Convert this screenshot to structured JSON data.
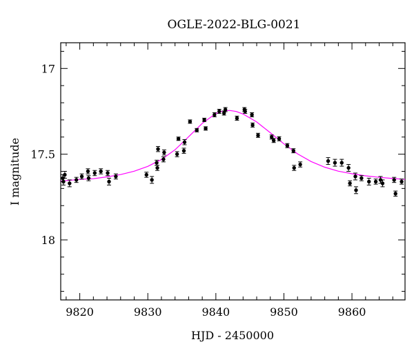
{
  "chart_data": {
    "type": "scatter",
    "title": "OGLE-2022-BLG-0021",
    "xlabel": "HJD - 2450000",
    "ylabel": "I magnitude",
    "xlim": [
      9817.2,
      9867.8
    ],
    "ylim": [
      18.35,
      16.85
    ],
    "y_inverted": true,
    "grid": false,
    "xticks": [
      9820,
      9830,
      9840,
      9850,
      9860
    ],
    "xtick_labels": [
      "9820",
      "9830",
      "9840",
      "9850",
      "9860"
    ],
    "yticks": [
      17,
      17.5,
      18
    ],
    "ytick_labels": [
      "17",
      "17.5",
      "18"
    ],
    "colors": {
      "points": "#000000",
      "model": "#ff00ff",
      "secondary_points": "#4a6b3a"
    },
    "series": [
      {
        "kind": "points",
        "x": [
          9817.5,
          9817.6,
          9817.8,
          9818.5,
          9819.5,
          9820.3,
          9821.2,
          9821.3,
          9822.2,
          9823.1,
          9824.1,
          9824.3,
          9825.3,
          9829.8,
          9830.6,
          9831.3,
          9831.4,
          9831.5,
          9832.3,
          9832.4,
          9834.3,
          9834.5,
          9835.3,
          9835.4,
          9836.2,
          9837.2,
          9838.3,
          9838.5,
          9839.8,
          9840.5,
          9841.2,
          9841.4,
          9843.1,
          9844.2,
          9844.3,
          9845.3,
          9845.4,
          9846.2,
          9848.2,
          9848.5,
          9849.3,
          9850.5,
          9851.4,
          9851.5,
          9852.4,
          9856.5,
          9857.5,
          9858.5,
          9859.5,
          9859.7,
          9860.5,
          9860.6,
          9861.4,
          9862.5,
          9863.5,
          9864.2,
          9864.5,
          9866.2,
          9866.4,
          9867.3
        ],
        "y": [
          17.64,
          17.66,
          17.62,
          17.67,
          17.65,
          17.63,
          17.6,
          17.64,
          17.61,
          17.6,
          17.61,
          17.66,
          17.63,
          17.62,
          17.65,
          17.55,
          17.58,
          17.47,
          17.53,
          17.49,
          17.5,
          17.41,
          17.48,
          17.43,
          17.31,
          17.36,
          17.3,
          17.35,
          17.27,
          17.25,
          17.26,
          17.24,
          17.29,
          17.24,
          17.25,
          17.27,
          17.33,
          17.39,
          17.4,
          17.42,
          17.41,
          17.45,
          17.48,
          17.58,
          17.56,
          17.54,
          17.55,
          17.55,
          17.58,
          17.67,
          17.63,
          17.71,
          17.64,
          17.66,
          17.66,
          17.65,
          17.67,
          17.65,
          17.73,
          17.66
        ],
        "err": [
          0.02,
          0.02,
          0.02,
          0.02,
          0.015,
          0.015,
          0.015,
          0.015,
          0.015,
          0.015,
          0.015,
          0.02,
          0.015,
          0.015,
          0.02,
          0.015,
          0.015,
          0.015,
          0.015,
          0.015,
          0.015,
          0.01,
          0.015,
          0.015,
          0.01,
          0.01,
          0.01,
          0.01,
          0.012,
          0.012,
          0.012,
          0.012,
          0.012,
          0.012,
          0.012,
          0.012,
          0.012,
          0.012,
          0.012,
          0.012,
          0.012,
          0.012,
          0.012,
          0.015,
          0.015,
          0.02,
          0.02,
          0.02,
          0.02,
          0.015,
          0.02,
          0.02,
          0.015,
          0.02,
          0.015,
          0.02,
          0.02,
          0.015,
          0.015,
          0.015
        ]
      },
      {
        "kind": "model",
        "x": [
          9817.2,
          9820,
          9822,
          9824,
          9826,
          9828,
          9830,
          9832,
          9834,
          9836,
          9838,
          9840,
          9841,
          9842,
          9843,
          9844,
          9846,
          9848,
          9850,
          9852,
          9854,
          9856,
          9858,
          9860,
          9862,
          9864,
          9866,
          9867.8
        ],
        "y": [
          17.657,
          17.647,
          17.643,
          17.632,
          17.619,
          17.599,
          17.571,
          17.531,
          17.474,
          17.398,
          17.32,
          17.263,
          17.249,
          17.245,
          17.251,
          17.266,
          17.312,
          17.375,
          17.44,
          17.498,
          17.543,
          17.576,
          17.599,
          17.614,
          17.626,
          17.635,
          17.642,
          17.647
        ]
      }
    ]
  }
}
